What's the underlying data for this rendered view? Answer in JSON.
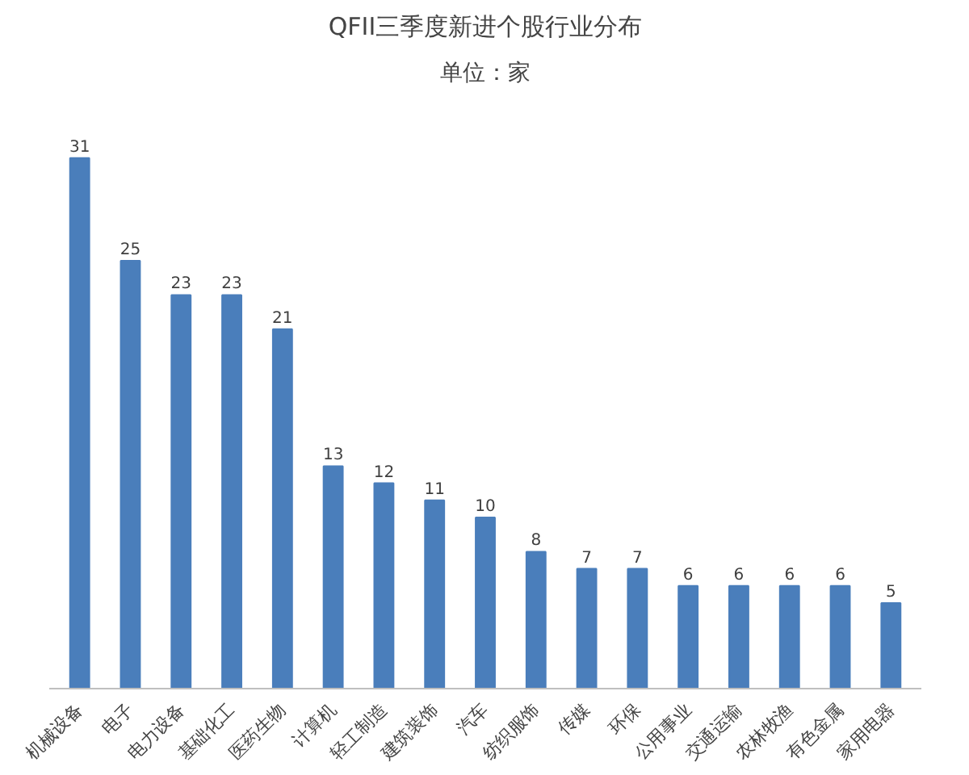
{
  "chart_data": {
    "type": "bar",
    "title": "QFII三季度新进个股行业分布",
    "subtitle": "单位：家",
    "categories": [
      "机械设备",
      "电子",
      "电力设备",
      "基础化工",
      "医药生物",
      "计算机",
      "轻工制造",
      "建筑装饰",
      "汽车",
      "纺织服饰",
      "传媒",
      "环保",
      "公用事业",
      "交通运输",
      "农林牧渔",
      "有色金属",
      "家用电器"
    ],
    "values": [
      31,
      25,
      23,
      23,
      21,
      13,
      12,
      11,
      10,
      8,
      7,
      7,
      6,
      6,
      6,
      6,
      5
    ],
    "color": "#4a7ebb",
    "data_labels": true
  }
}
